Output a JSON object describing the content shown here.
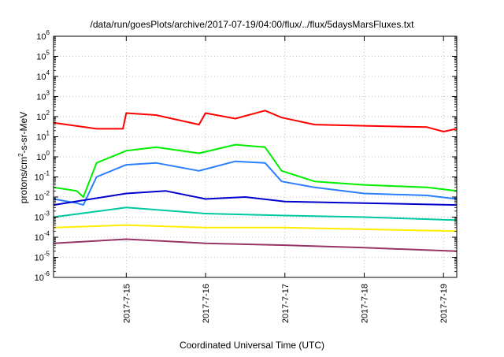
{
  "chart_data": {
    "type": "line",
    "title": "/data/run/goesPlots/archive/2017-07-19/04:00/flux/../flux/5daysMarsFluxes.txt",
    "xlabel": "Coordinated Universal Time (UTC)",
    "ylabel": {
      "prefix": "protons/cm",
      "superscript": "2",
      "suffix": "-s-sr-MeV"
    },
    "yscale": "log",
    "ylim": [
      1e-06,
      1000000.0
    ],
    "xlim": [
      "2017-07-14 02:00",
      "2017-07-19 04:00"
    ],
    "grid": true,
    "x_ticks": [
      "2017-7-15",
      "2017-7-16",
      "2017-7-17",
      "2017-7-18",
      "2017-7-19"
    ],
    "y_ticks": [
      {
        "base": "10",
        "exp": "-6"
      },
      {
        "base": "10",
        "exp": "-5"
      },
      {
        "base": "10",
        "exp": "-4"
      },
      {
        "base": "10",
        "exp": "-3"
      },
      {
        "base": "10",
        "exp": "-2"
      },
      {
        "base": "10",
        "exp": "-1"
      },
      {
        "base": "10",
        "exp": "0"
      },
      {
        "base": "10",
        "exp": "1"
      },
      {
        "base": "10",
        "exp": "2"
      },
      {
        "base": "10",
        "exp": "3"
      },
      {
        "base": "10",
        "exp": "4"
      },
      {
        "base": "10",
        "exp": "5"
      },
      {
        "base": "10",
        "exp": "6"
      }
    ],
    "series": [
      {
        "color": "#ff0000",
        "x": [
          "2017-07-14 02:00",
          "2017-07-14 15:00",
          "2017-07-14 23:00",
          "2017-07-15 00:00",
          "2017-07-15 09:00",
          "2017-07-15 22:00",
          "2017-07-16 00:00",
          "2017-07-16 09:00",
          "2017-07-16 18:00",
          "2017-07-16 23:00",
          "2017-07-17 09:00",
          "2017-07-18 00:00",
          "2017-07-18 19:00",
          "2017-07-19 00:00",
          "2017-07-19 04:00"
        ],
        "y": [
          50,
          25,
          25,
          150,
          120,
          40,
          150,
          80,
          200,
          90,
          40,
          35,
          30,
          18,
          25
        ]
      },
      {
        "color": "#00ee00",
        "x": [
          "2017-07-14 02:00",
          "2017-07-14 09:00",
          "2017-07-14 11:00",
          "2017-07-14 15:00",
          "2017-07-15 00:00",
          "2017-07-15 09:00",
          "2017-07-15 22:00",
          "2017-07-16 09:00",
          "2017-07-16 18:00",
          "2017-07-16 23:00",
          "2017-07-17 09:00",
          "2017-07-18 00:00",
          "2017-07-18 19:00",
          "2017-07-19 04:00"
        ],
        "y": [
          0.03,
          0.02,
          0.01,
          0.5,
          2,
          3,
          1.5,
          4,
          3,
          0.2,
          0.06,
          0.04,
          0.03,
          0.02
        ]
      },
      {
        "color": "#2a7fff",
        "x": [
          "2017-07-14 02:00",
          "2017-07-14 09:00",
          "2017-07-14 11:00",
          "2017-07-14 15:00",
          "2017-07-15 00:00",
          "2017-07-15 09:00",
          "2017-07-15 22:00",
          "2017-07-16 09:00",
          "2017-07-16 18:00",
          "2017-07-16 23:00",
          "2017-07-17 09:00",
          "2017-07-18 00:00",
          "2017-07-18 19:00",
          "2017-07-19 04:00"
        ],
        "y": [
          0.008,
          0.005,
          0.004,
          0.1,
          0.4,
          0.5,
          0.2,
          0.6,
          0.5,
          0.06,
          0.03,
          0.015,
          0.012,
          0.008
        ]
      },
      {
        "color": "#0000cc",
        "x": [
          "2017-07-14 02:00",
          "2017-07-15 00:00",
          "2017-07-15 12:00",
          "2017-07-16 00:00",
          "2017-07-16 12:00",
          "2017-07-17 00:00",
          "2017-07-18 00:00",
          "2017-07-19 04:00"
        ],
        "y": [
          0.004,
          0.015,
          0.02,
          0.008,
          0.01,
          0.006,
          0.005,
          0.004
        ]
      },
      {
        "color": "#00c8a0",
        "x": [
          "2017-07-14 02:00",
          "2017-07-15 00:00",
          "2017-07-16 00:00",
          "2017-07-17 00:00",
          "2017-07-18 00:00",
          "2017-07-19 04:00"
        ],
        "y": [
          0.001,
          0.003,
          0.0015,
          0.0012,
          0.001,
          0.0007
        ]
      },
      {
        "color": "#ffee00",
        "x": [
          "2017-07-14 02:00",
          "2017-07-15 00:00",
          "2017-07-16 00:00",
          "2017-07-17 00:00",
          "2017-07-18 00:00",
          "2017-07-19 04:00"
        ],
        "y": [
          0.0003,
          0.0004,
          0.0003,
          0.0003,
          0.00025,
          0.0002
        ]
      },
      {
        "color": "#993366",
        "x": [
          "2017-07-14 02:00",
          "2017-07-15 00:00",
          "2017-07-16 00:00",
          "2017-07-17 00:00",
          "2017-07-18 00:00",
          "2017-07-19 04:00"
        ],
        "y": [
          5e-05,
          8e-05,
          5e-05,
          4e-05,
          3e-05,
          2e-05
        ]
      }
    ]
  }
}
